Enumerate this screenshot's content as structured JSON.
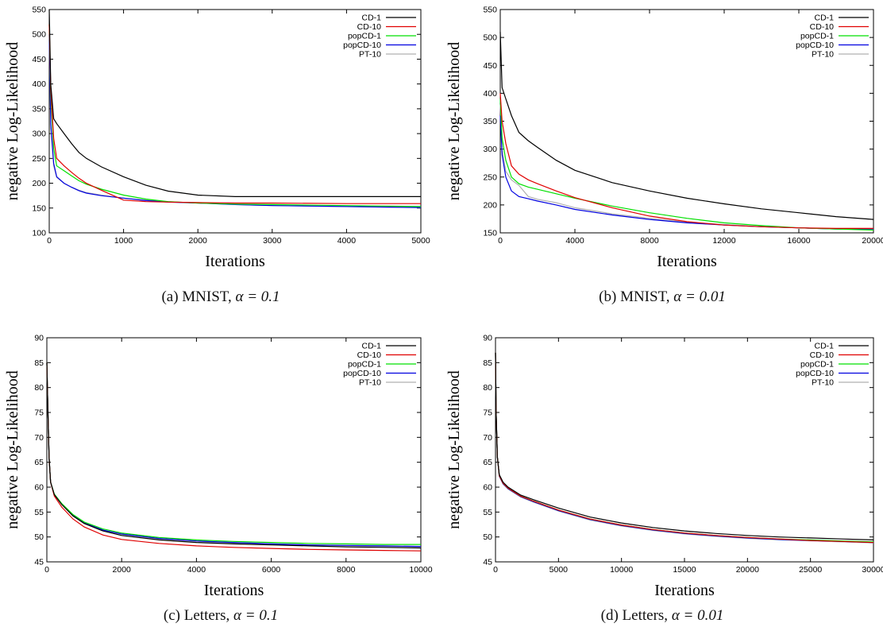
{
  "chart_data": [
    {
      "type": "line",
      "caption_prefix": "(a)",
      "caption_dataset": "MNIST,",
      "caption_alpha": "α = 0.1",
      "xlabel": "Iterations",
      "ylabel": "negative Log-Likelihood",
      "xlim": [
        0,
        5000
      ],
      "ylim": [
        100,
        550
      ],
      "xticks": [
        0,
        1000,
        2000,
        3000,
        4000,
        5000
      ],
      "yticks": [
        100,
        150,
        200,
        250,
        300,
        350,
        400,
        450,
        500,
        550
      ],
      "legend_position": "top-right",
      "series": [
        {
          "name": "CD-1",
          "color": "#000000",
          "x": [
            0,
            20,
            60,
            100,
            200,
            300,
            400,
            500,
            700,
            1000,
            1300,
            1600,
            2000,
            2500,
            3000,
            4000,
            5000
          ],
          "y": [
            550,
            400,
            330,
            320,
            300,
            280,
            262,
            250,
            233,
            213,
            196,
            184,
            176,
            173,
            173,
            173,
            173
          ]
        },
        {
          "name": "CD-10",
          "color": "#e00000",
          "x": [
            0,
            20,
            60,
            100,
            200,
            300,
            400,
            500,
            700,
            1000,
            1300,
            1600,
            2000,
            2500,
            3000,
            4000,
            5000
          ],
          "y": [
            520,
            390,
            290,
            250,
            235,
            222,
            210,
            200,
            186,
            166,
            163,
            162,
            161,
            160,
            160,
            159,
            159
          ]
        },
        {
          "name": "popCD-1",
          "color": "#00e000",
          "x": [
            0,
            20,
            60,
            100,
            200,
            300,
            400,
            500,
            700,
            1000,
            1300,
            1600,
            2000,
            2500,
            3000,
            4000,
            5000
          ],
          "y": [
            520,
            380,
            270,
            235,
            225,
            215,
            205,
            198,
            188,
            176,
            168,
            163,
            160,
            158,
            157,
            155,
            153
          ]
        },
        {
          "name": "popCD-10",
          "color": "#0000e0",
          "x": [
            0,
            20,
            60,
            100,
            200,
            300,
            400,
            500,
            700,
            1000,
            1300,
            1600,
            2000,
            2500,
            3000,
            4000,
            5000
          ],
          "y": [
            500,
            320,
            240,
            213,
            200,
            192,
            185,
            180,
            175,
            170,
            165,
            162,
            160,
            157,
            155,
            153,
            151
          ]
        },
        {
          "name": "PT-10",
          "color": "#b0b0b0",
          "x": [
            0,
            20,
            60,
            100,
            200,
            300,
            400,
            500,
            700,
            1000,
            1300,
            1600,
            2000,
            2500,
            3000,
            4000,
            5000
          ],
          "y": [
            490,
            310,
            235,
            212,
            200,
            192,
            186,
            181,
            176,
            170,
            166,
            163,
            160,
            157,
            155,
            153,
            151
          ]
        }
      ]
    },
    {
      "type": "line",
      "caption_prefix": "(b)",
      "caption_dataset": "MNIST,",
      "caption_alpha": "α = 0.01",
      "xlabel": "Iterations",
      "ylabel": "negative Log-Likelihood",
      "xlim": [
        0,
        20000
      ],
      "ylim": [
        150,
        550
      ],
      "xticks": [
        0,
        4000,
        8000,
        12000,
        16000,
        20000
      ],
      "yticks": [
        150,
        200,
        250,
        300,
        350,
        400,
        450,
        500,
        550
      ],
      "legend_position": "top-right",
      "series": [
        {
          "name": "CD-1",
          "color": "#000000",
          "x": [
            0,
            100,
            300,
            600,
            1000,
            1500,
            2000,
            3000,
            4000,
            6000,
            8000,
            10000,
            12000,
            14000,
            16000,
            18000,
            20000
          ],
          "y": [
            510,
            410,
            390,
            360,
            330,
            315,
            303,
            280,
            262,
            240,
            225,
            212,
            202,
            193,
            186,
            179,
            174
          ]
        },
        {
          "name": "CD-10",
          "color": "#e00000",
          "x": [
            0,
            100,
            300,
            600,
            1000,
            1500,
            2000,
            3000,
            4000,
            6000,
            8000,
            10000,
            12000,
            14000,
            16000,
            18000,
            20000
          ],
          "y": [
            400,
            350,
            310,
            270,
            255,
            245,
            238,
            225,
            213,
            195,
            180,
            170,
            164,
            161,
            159,
            158,
            158
          ]
        },
        {
          "name": "popCD-1",
          "color": "#00e000",
          "x": [
            0,
            100,
            300,
            600,
            1000,
            1500,
            2000,
            3000,
            4000,
            6000,
            8000,
            10000,
            12000,
            14000,
            16000,
            18000,
            20000
          ],
          "y": [
            390,
            320,
            280,
            250,
            238,
            232,
            228,
            220,
            212,
            198,
            186,
            176,
            168,
            163,
            159,
            157,
            155
          ]
        },
        {
          "name": "popCD-10",
          "color": "#0000e0",
          "x": [
            0,
            100,
            300,
            600,
            1000,
            1500,
            2000,
            3000,
            4000,
            6000,
            8000,
            10000,
            12000,
            14000,
            16000,
            18000,
            20000
          ],
          "y": [
            360,
            290,
            250,
            225,
            215,
            211,
            207,
            200,
            192,
            182,
            174,
            168,
            164,
            161,
            159,
            157,
            156
          ]
        },
        {
          "name": "PT-10",
          "color": "#b0b0b0",
          "x": [
            0,
            100,
            300,
            600,
            1000,
            1500,
            2000,
            3000,
            4000,
            6000,
            8000,
            10000,
            12000,
            14000,
            16000,
            18000,
            20000
          ],
          "y": [
            380,
            300,
            260,
            245,
            235,
            215,
            210,
            204,
            195,
            184,
            176,
            169,
            165,
            161,
            159,
            157,
            156
          ]
        }
      ]
    },
    {
      "type": "line",
      "caption_prefix": "(c)",
      "caption_dataset": "Letters,",
      "caption_alpha": "α = 0.1",
      "xlabel": "Iterations",
      "ylabel": "negative Log-Likelihood",
      "xlim": [
        0,
        10000
      ],
      "ylim": [
        45,
        90
      ],
      "xticks": [
        0,
        2000,
        4000,
        6000,
        8000,
        10000
      ],
      "yticks": [
        45,
        50,
        55,
        60,
        65,
        70,
        75,
        80,
        85,
        90
      ],
      "legend_position": "top-right",
      "series": [
        {
          "name": "CD-1",
          "color": "#000000",
          "x": [
            0,
            30,
            60,
            100,
            200,
            400,
            700,
            1000,
            1500,
            2000,
            3000,
            4000,
            5000,
            6000,
            7000,
            8000,
            9000,
            10000
          ],
          "y": [
            85,
            75,
            66,
            61,
            58.5,
            56.5,
            54.2,
            52.7,
            51.2,
            50.3,
            49.4,
            48.9,
            48.6,
            48.4,
            48.2,
            48.0,
            47.9,
            47.8
          ]
        },
        {
          "name": "CD-10",
          "color": "#e00000",
          "x": [
            0,
            30,
            60,
            100,
            200,
            400,
            700,
            1000,
            1500,
            2000,
            3000,
            4000,
            5000,
            6000,
            7000,
            8000,
            9000,
            10000
          ],
          "y": [
            85,
            75,
            66,
            61,
            58.2,
            56.0,
            53.6,
            52.0,
            50.4,
            49.5,
            48.7,
            48.2,
            47.9,
            47.7,
            47.5,
            47.4,
            47.3,
            47.2
          ]
        },
        {
          "name": "popCD-1",
          "color": "#00e000",
          "x": [
            0,
            30,
            60,
            100,
            200,
            400,
            700,
            1000,
            1500,
            2000,
            3000,
            4000,
            5000,
            6000,
            7000,
            8000,
            9000,
            10000
          ],
          "y": [
            85,
            75,
            66,
            61,
            58.6,
            56.7,
            54.5,
            53.0,
            51.6,
            50.8,
            49.9,
            49.4,
            49.1,
            48.9,
            48.7,
            48.6,
            48.5,
            48.5
          ]
        },
        {
          "name": "popCD-10",
          "color": "#0000e0",
          "x": [
            0,
            30,
            60,
            100,
            200,
            400,
            700,
            1000,
            1500,
            2000,
            3000,
            4000,
            5000,
            6000,
            7000,
            8000,
            9000,
            10000
          ],
          "y": [
            85,
            75,
            66,
            61,
            58.5,
            56.6,
            54.3,
            52.8,
            51.4,
            50.6,
            49.7,
            49.2,
            48.9,
            48.6,
            48.4,
            48.3,
            48.2,
            48.1
          ]
        },
        {
          "name": "PT-10",
          "color": "#b0b0b0",
          "x": [
            0,
            30,
            60,
            100,
            200,
            400,
            700,
            1000,
            1500,
            2000,
            3000,
            4000,
            5000,
            6000,
            7000,
            8000,
            9000,
            10000
          ],
          "y": [
            85,
            75,
            66,
            61,
            58.4,
            56.5,
            54.2,
            52.7,
            51.3,
            50.5,
            49.6,
            49.1,
            48.8,
            48.5,
            48.3,
            48.2,
            48.1,
            48.0
          ]
        }
      ]
    },
    {
      "type": "line",
      "caption_prefix": "(d)",
      "caption_dataset": "Letters,",
      "caption_alpha": "α = 0.01",
      "xlabel": "Iterations",
      "ylabel": "negative Log-Likelihood",
      "xlim": [
        0,
        30000
      ],
      "ylim": [
        45,
        90
      ],
      "xticks": [
        0,
        5000,
        10000,
        15000,
        20000,
        25000,
        30000
      ],
      "yticks": [
        45,
        50,
        55,
        60,
        65,
        70,
        75,
        80,
        85,
        90
      ],
      "legend_position": "top-right",
      "series": [
        {
          "name": "CD-1",
          "color": "#000000",
          "x": [
            0,
            50,
            150,
            300,
            600,
            1000,
            2000,
            3000,
            5000,
            7500,
            10000,
            12500,
            15000,
            17500,
            20000,
            22500,
            25000,
            27500,
            30000
          ],
          "y": [
            87,
            75,
            66,
            62.5,
            61,
            60,
            58.4,
            57.5,
            55.8,
            54.0,
            52.8,
            51.9,
            51.2,
            50.7,
            50.3,
            50.0,
            49.8,
            49.6,
            49.4
          ]
        },
        {
          "name": "CD-10",
          "color": "#e00000",
          "x": [
            0,
            50,
            150,
            300,
            600,
            1000,
            2000,
            3000,
            5000,
            7500,
            10000,
            12500,
            15000,
            17500,
            20000,
            22500,
            25000,
            27500,
            30000
          ],
          "y": [
            87,
            75,
            66,
            62.3,
            60.8,
            59.8,
            58.2,
            57.2,
            55.4,
            53.6,
            52.4,
            51.5,
            50.8,
            50.3,
            49.9,
            49.6,
            49.3,
            49.1,
            48.9
          ]
        },
        {
          "name": "popCD-1",
          "color": "#00e000",
          "x": [
            0,
            50,
            150,
            300,
            600,
            1000,
            2000,
            3000,
            5000,
            7500,
            10000,
            12500,
            15000,
            17500,
            20000,
            22500,
            25000,
            27500,
            30000
          ],
          "y": [
            87,
            75,
            66,
            62.3,
            60.8,
            59.8,
            58.2,
            57.2,
            55.4,
            53.6,
            52.4,
            51.5,
            50.8,
            50.3,
            49.9,
            49.6,
            49.4,
            49.2,
            49.0
          ]
        },
        {
          "name": "popCD-10",
          "color": "#0000e0",
          "x": [
            0,
            50,
            150,
            300,
            600,
            1000,
            2000,
            3000,
            5000,
            7500,
            10000,
            12500,
            15000,
            17500,
            20000,
            22500,
            25000,
            27500,
            30000
          ],
          "y": [
            87,
            75,
            66,
            62.2,
            60.7,
            59.7,
            58.1,
            57.1,
            55.3,
            53.5,
            52.3,
            51.4,
            50.7,
            50.2,
            49.8,
            49.5,
            49.3,
            49.1,
            48.9
          ]
        },
        {
          "name": "PT-10",
          "color": "#b0b0b0",
          "x": [
            0,
            50,
            150,
            300,
            600,
            1000,
            2000,
            3000,
            5000,
            7500,
            10000,
            12500,
            15000,
            17500,
            20000,
            22500,
            25000,
            27500,
            30000
          ],
          "y": [
            87,
            75,
            66,
            62.2,
            60.6,
            59.6,
            58.0,
            57.0,
            55.2,
            53.4,
            52.2,
            51.3,
            50.6,
            50.1,
            49.7,
            49.4,
            49.2,
            49.0,
            48.8
          ]
        }
      ]
    }
  ]
}
